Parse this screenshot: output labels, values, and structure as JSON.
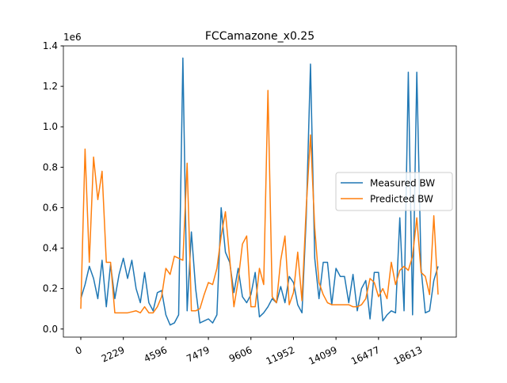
{
  "chart_data": {
    "type": "line",
    "title": "FCCamazone_x0.25",
    "y_offset_label": "1e6",
    "categories": [
      "0",
      null,
      null,
      null,
      null,
      null,
      null,
      null,
      null,
      null,
      "2229",
      null,
      null,
      null,
      null,
      null,
      null,
      null,
      null,
      null,
      "4596",
      null,
      null,
      null,
      null,
      null,
      null,
      null,
      null,
      null,
      "7479",
      null,
      null,
      null,
      null,
      null,
      null,
      null,
      null,
      null,
      "9606",
      null,
      null,
      null,
      null,
      null,
      null,
      null,
      null,
      null,
      "11952",
      null,
      null,
      null,
      null,
      null,
      null,
      null,
      null,
      null,
      "14099",
      null,
      null,
      null,
      null,
      null,
      null,
      null,
      null,
      null,
      "16477",
      null,
      null,
      null,
      null,
      null,
      null,
      null,
      null,
      null,
      "18613",
      null,
      null,
      null,
      null
    ],
    "series": [
      {
        "name": "Measured BW",
        "color": "#1f77b4",
        "values": [
          0.15,
          0.22,
          0.31,
          0.25,
          0.15,
          0.34,
          0.11,
          0.32,
          0.15,
          0.27,
          0.35,
          0.25,
          0.34,
          0.2,
          0.13,
          0.28,
          0.13,
          0.09,
          0.18,
          0.19,
          0.07,
          0.02,
          0.03,
          0.07,
          1.34,
          0.09,
          0.48,
          0.2,
          0.03,
          0.04,
          0.05,
          0.03,
          0.07,
          0.6,
          0.38,
          0.33,
          0.18,
          0.3,
          0.16,
          0.13,
          0.17,
          0.28,
          0.06,
          0.08,
          0.11,
          0.15,
          0.13,
          0.21,
          0.13,
          0.26,
          0.23,
          0.12,
          0.08,
          0.55,
          1.31,
          0.35,
          0.15,
          0.33,
          0.33,
          0.12,
          0.3,
          0.26,
          0.26,
          0.13,
          0.27,
          0.09,
          0.2,
          0.24,
          0.05,
          0.28,
          0.28,
          0.04,
          0.07,
          0.09,
          0.08,
          0.55,
          0.09,
          1.27,
          0.07,
          1.27,
          0.3,
          0.08,
          0.09,
          0.24,
          0.31
        ]
      },
      {
        "name": "Predicted BW",
        "color": "#ff7f0e",
        "values": [
          0.1,
          0.89,
          0.33,
          0.85,
          0.64,
          0.78,
          0.33,
          0.33,
          0.08,
          0.08,
          0.08,
          0.08,
          0.085,
          0.09,
          0.08,
          0.11,
          0.08,
          0.08,
          0.11,
          0.16,
          0.3,
          0.27,
          0.36,
          0.35,
          0.34,
          0.82,
          0.09,
          0.09,
          0.1,
          0.17,
          0.23,
          0.22,
          0.3,
          0.46,
          0.58,
          0.35,
          0.11,
          0.24,
          0.42,
          0.46,
          0.11,
          0.11,
          0.3,
          0.22,
          1.18,
          0.16,
          0.13,
          0.34,
          0.46,
          0.12,
          0.18,
          0.38,
          0.14,
          0.6,
          0.96,
          0.5,
          0.23,
          0.17,
          0.13,
          0.12,
          0.12,
          0.12,
          0.12,
          0.12,
          0.11,
          0.11,
          0.12,
          0.15,
          0.25,
          0.23,
          0.16,
          0.2,
          0.15,
          0.33,
          0.22,
          0.29,
          0.31,
          0.29,
          0.36,
          0.55,
          0.28,
          0.26,
          0.17,
          0.56,
          0.17
        ]
      }
    ],
    "ylim": [
      -0.04,
      1.4
    ],
    "yticks": [
      {
        "value": 0,
        "label": "0.0"
      },
      0.2,
      0.4,
      0.6,
      0.8,
      {
        "value": 1,
        "label": "1.0"
      },
      1.2,
      1.4
    ],
    "legend": "center right"
  }
}
